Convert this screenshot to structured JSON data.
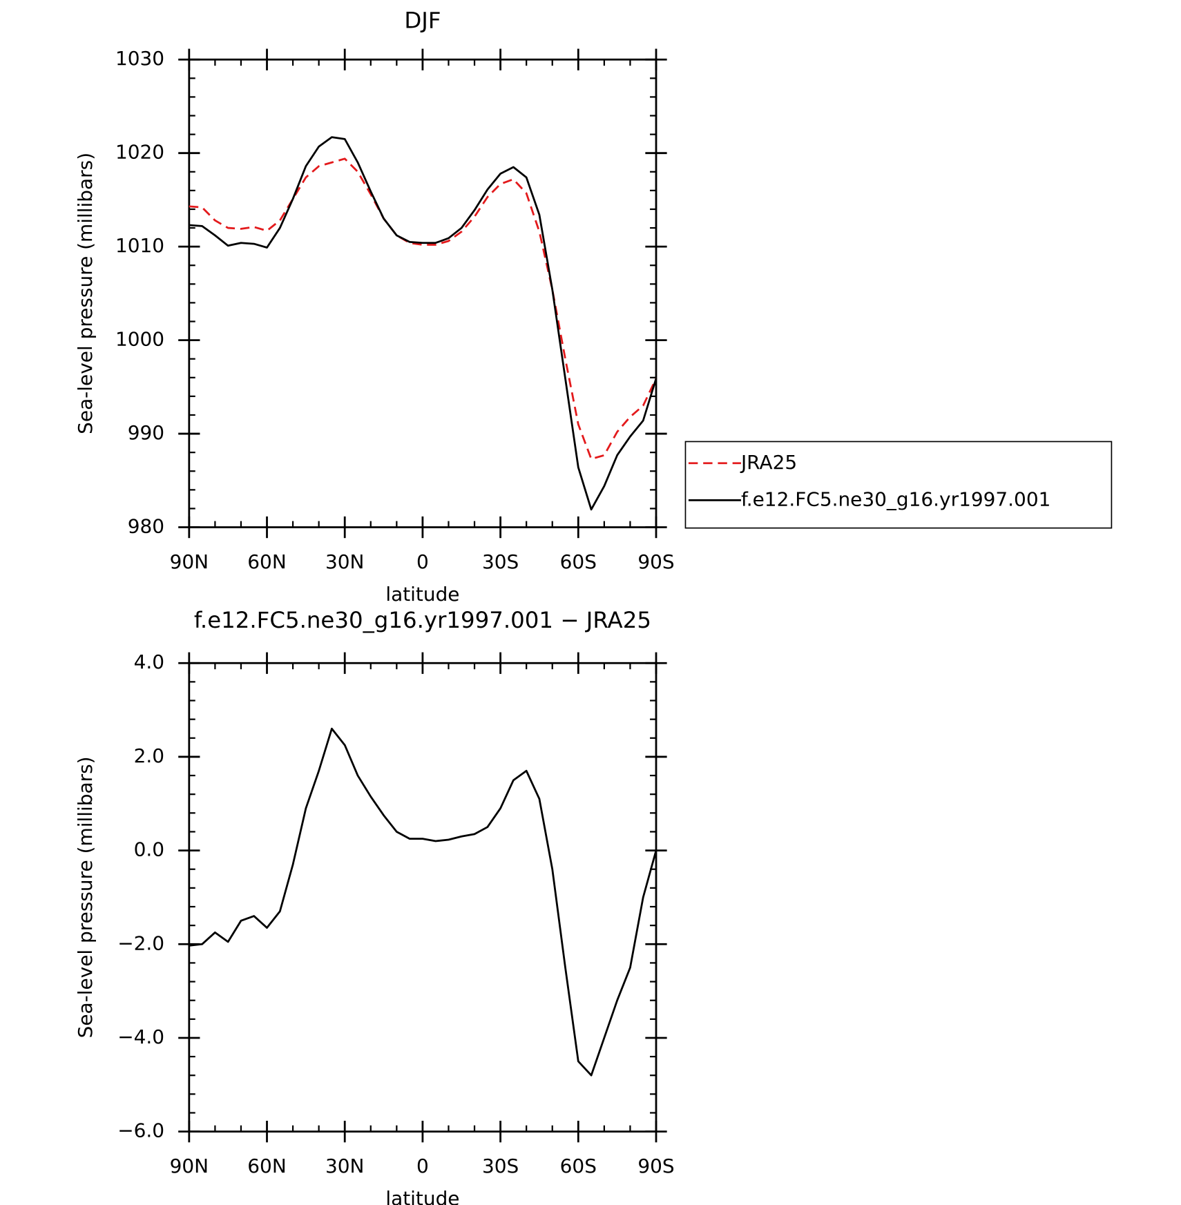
{
  "chart_data": [
    {
      "type": "line",
      "title": "DJF",
      "xlabel": "latitude",
      "ylabel": "Sea-level pressure (millibars)",
      "x": [
        90,
        85,
        80,
        75,
        70,
        65,
        60,
        55,
        50,
        45,
        40,
        35,
        30,
        25,
        20,
        15,
        10,
        5,
        0,
        -5,
        -10,
        -15,
        -20,
        -25,
        -30,
        -35,
        -40,
        -45,
        -50,
        -55,
        -60,
        -65,
        -70,
        -75,
        -80,
        -85,
        -90
      ],
      "series": [
        {
          "name": "JRA25",
          "color": "#e31a1c",
          "linestyle": "dashed",
          "values": [
            1014.3,
            1014.2,
            1012.8,
            1012.0,
            1011.9,
            1012.1,
            1011.7,
            1012.8,
            1015.1,
            1017.4,
            1018.6,
            1019.0,
            1019.4,
            1018.0,
            1015.6,
            1013.0,
            1011.2,
            1010.4,
            1010.2,
            1010.2,
            1010.6,
            1011.6,
            1013.2,
            1015.3,
            1016.7,
            1017.2,
            1015.7,
            1011.6,
            1005.4,
            998.0,
            991.0,
            987.3,
            987.7,
            990.2,
            991.8,
            993.0,
            995.9
          ]
        },
        {
          "name": "f.e12.FC5.ne30_g16.yr1997.001",
          "color": "#000000",
          "linestyle": "solid",
          "values": [
            1012.3,
            1012.2,
            1011.2,
            1010.1,
            1010.4,
            1010.3,
            1009.9,
            1012.0,
            1015.1,
            1018.6,
            1020.7,
            1021.7,
            1021.5,
            1019.0,
            1015.9,
            1013.0,
            1011.2,
            1010.5,
            1010.4,
            1010.4,
            1010.9,
            1012.0,
            1013.9,
            1016.1,
            1017.8,
            1018.5,
            1017.4,
            1013.4,
            1005.4,
            995.9,
            986.4,
            981.9,
            984.4,
            987.7,
            989.7,
            991.4,
            995.9
          ]
        }
      ],
      "xlim": [
        90,
        -90
      ],
      "xticks": [
        {
          "value": 90,
          "label": "90N"
        },
        {
          "value": 60,
          "label": "60N"
        },
        {
          "value": 30,
          "label": "30N"
        },
        0,
        {
          "value": -30,
          "label": "30S"
        },
        {
          "value": -60,
          "label": "60S"
        },
        {
          "value": -90,
          "label": "90S"
        }
      ],
      "ylim": [
        980,
        1030
      ],
      "yticks": [
        980,
        990,
        1000,
        1010,
        1020,
        1030
      ],
      "legend": "right"
    },
    {
      "type": "line",
      "title": "f.e12.FC5.ne30_g16.yr1997.001 − JRA25",
      "xlabel": "latitude",
      "ylabel": "Sea-level pressure (millibars)",
      "x": [
        90,
        85,
        80,
        75,
        70,
        65,
        60,
        55,
        50,
        45,
        40,
        35,
        30,
        25,
        20,
        15,
        10,
        5,
        0,
        -5,
        -10,
        -15,
        -20,
        -25,
        -30,
        -35,
        -40,
        -45,
        -50,
        -55,
        -60,
        -65,
        -70,
        -75,
        -80,
        -85,
        -90
      ],
      "color": "#000000",
      "values": [
        -2.03,
        -2.0,
        -1.75,
        -1.95,
        -1.5,
        -1.4,
        -1.65,
        -1.3,
        -0.3,
        0.9,
        1.7,
        2.6,
        2.25,
        1.6,
        1.15,
        0.75,
        0.4,
        0.25,
        0.25,
        0.2,
        0.23,
        0.3,
        0.35,
        0.5,
        0.9,
        1.5,
        1.7,
        1.1,
        -0.4,
        -2.5,
        -4.5,
        -4.8,
        -4.0,
        -3.2,
        -2.5,
        -1.0,
        0.0
      ],
      "xlim": [
        90,
        -90
      ],
      "xticks": [
        {
          "value": 90,
          "label": "90N"
        },
        {
          "value": 60,
          "label": "60N"
        },
        {
          "value": 30,
          "label": "30N"
        },
        0,
        {
          "value": -30,
          "label": "30S"
        },
        {
          "value": -60,
          "label": "60S"
        },
        {
          "value": -90,
          "label": "90S"
        }
      ],
      "ylim": [
        -6,
        4
      ],
      "yticks": [
        {
          "value": -6,
          "label": "−6.0"
        },
        {
          "value": -4,
          "label": "−4.0"
        },
        {
          "value": -2,
          "label": "−2.0"
        },
        {
          "value": 0,
          "label": "0.0"
        },
        {
          "value": 2,
          "label": "2.0"
        },
        {
          "value": 4,
          "label": "4.0"
        }
      ]
    }
  ]
}
